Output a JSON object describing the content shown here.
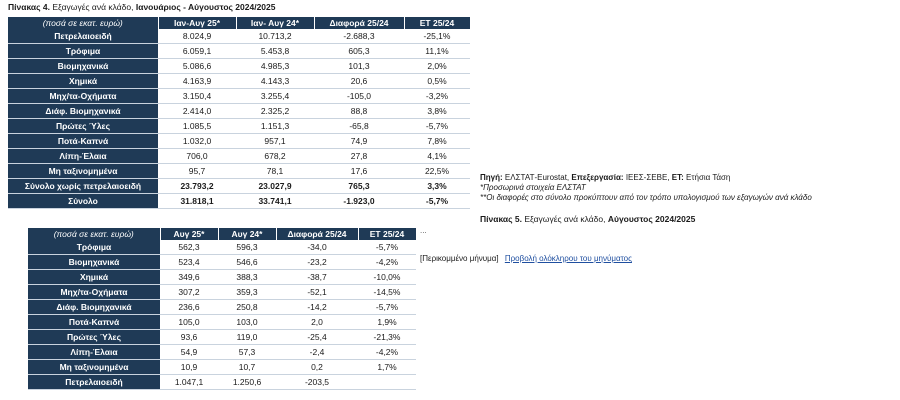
{
  "table4": {
    "title_label": "Πίνακας 4.",
    "title_text": "Εξαγωγές ανά κλάδο,",
    "title_bold": "Ιανουάριος - Αύγουστος 2024/2025",
    "headers": [
      "(ποσά σε εκατ. ευρώ)",
      "Ιαν-Αυγ 25*",
      "Ιαν- Αυγ 24*",
      "Διαφορά 25/24",
      "ΕΤ 25/24"
    ],
    "rows": [
      {
        "label": "Πετρελαιοειδή",
        "v1": "8.024,9",
        "v2": "10.713,2",
        "diff": "-2.688,3",
        "et": "-25,1%"
      },
      {
        "label": "Τρόφιμα",
        "v1": "6.059,1",
        "v2": "5.453,8",
        "diff": "605,3",
        "et": "11,1%"
      },
      {
        "label": "Βιομηχανικά",
        "v1": "5.086,6",
        "v2": "4.985,3",
        "diff": "101,3",
        "et": "2,0%"
      },
      {
        "label": "Χημικά",
        "v1": "4.163,9",
        "v2": "4.143,3",
        "diff": "20,6",
        "et": "0,5%"
      },
      {
        "label": "Μηχ/τα-Οχήματα",
        "v1": "3.150,4",
        "v2": "3.255,4",
        "diff": "-105,0",
        "et": "-3,2%"
      },
      {
        "label": "Διάφ. Βιομηχανικά",
        "v1": "2.414,0",
        "v2": "2.325,2",
        "diff": "88,8",
        "et": "3,8%"
      },
      {
        "label": "Πρώτες Ύλες",
        "v1": "1.085,5",
        "v2": "1.151,3",
        "diff": "-65,8",
        "et": "-5,7%"
      },
      {
        "label": "Ποτά-Καπνά",
        "v1": "1.032,0",
        "v2": "957,1",
        "diff": "74,9",
        "et": "7,8%"
      },
      {
        "label": "Λίπη-Έλαια",
        "v1": "706,0",
        "v2": "678,2",
        "diff": "27,8",
        "et": "4,1%"
      },
      {
        "label": "Μη ταξινομημένα",
        "v1": "95,7",
        "v2": "78,1",
        "diff": "17,6",
        "et": "22,5%"
      },
      {
        "label": "Σύνολο χωρίς πετρελαιοειδή",
        "v1": "23.793,2",
        "v2": "23.027,9",
        "diff": "765,3",
        "et": "3,3%"
      },
      {
        "label": "Σύνολο",
        "v1": "31.818,1",
        "v2": "33.741,1",
        "diff": "-1.923,0",
        "et": "-5,7%"
      }
    ]
  },
  "notes": {
    "source_label": "Πηγή:",
    "source_text": "ΕΛΣΤΑΤ-Eurostat,",
    "processing_label": "Επεξεργασία:",
    "processing_text": "ΙΕΕΣ-ΣΕΒΕ,",
    "et_label": "ΕΤ:",
    "et_text": "Ετήσια Τάση",
    "note1": "*Προσωρινά στοιχεία ΕΛΣΤΑΤ",
    "note2": "**Οι διαφορές στο σύνολο προκύπτουν από τον τρόπο υπολογισμού των εξαγωγών ανά κλάδο"
  },
  "table5": {
    "title_label": "Πίνακας 5.",
    "title_text": "Εξαγωγές ανά κλάδο,",
    "title_bold": "Αύγουστος 2024/2025",
    "headers": [
      "(ποσά σε εκατ. ευρώ)",
      "Αυγ 25*",
      "Αυγ 24*",
      "Διαφορά 25/24",
      "ΕΤ 25/24"
    ],
    "rows": [
      {
        "label": "Τρόφιμα",
        "v1": "562,3",
        "v2": "596,3",
        "diff": "-34,0",
        "et": "-5,7%"
      },
      {
        "label": "Βιομηχανικά",
        "v1": "523,4",
        "v2": "546,6",
        "diff": "-23,2",
        "et": "-4,2%"
      },
      {
        "label": "Χημικά",
        "v1": "349,6",
        "v2": "388,3",
        "diff": "-38,7",
        "et": "-10,0%"
      },
      {
        "label": "Μηχ/τα-Οχήματα",
        "v1": "307,2",
        "v2": "359,3",
        "diff": "-52,1",
        "et": "-14,5%"
      },
      {
        "label": "Διάφ. Βιομηχανικά",
        "v1": "236,6",
        "v2": "250,8",
        "diff": "-14,2",
        "et": "-5,7%"
      },
      {
        "label": "Ποτά-Καπνά",
        "v1": "105,0",
        "v2": "103,0",
        "diff": "2,0",
        "et": "1,9%"
      },
      {
        "label": "Πρώτες Ύλες",
        "v1": "93,6",
        "v2": "119,0",
        "diff": "-25,4",
        "et": "-21,3%"
      },
      {
        "label": "Λίπη-Έλαια",
        "v1": "54,9",
        "v2": "57,3",
        "diff": "-2,4",
        "et": "-4,2%"
      },
      {
        "label": "Μη ταξινομημένα",
        "v1": "10,9",
        "v2": "10,7",
        "diff": "0,2",
        "et": "1,7%"
      },
      {
        "label": "Πετρελαιοειδή",
        "v1": "1.047,1",
        "v2": "1.250,6",
        "diff": "-203,5",
        "et": ""
      }
    ]
  },
  "message": {
    "ellipsis": "...",
    "truncated": "[Περικομμένο μήνυμα]",
    "view_full": "Προβολή ολόκληρου του μηνύματος"
  }
}
